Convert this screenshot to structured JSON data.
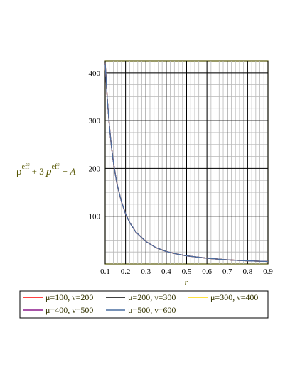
{
  "chart_data": {
    "type": "line",
    "xlabel": "r",
    "ylabel": {
      "rho": "ρ",
      "eff1": "eff",
      "mid": " + 3 ",
      "p": "p",
      "eff2": "eff",
      "tail": " − A"
    },
    "xlim": [
      0.1,
      0.9
    ],
    "ylim": [
      0,
      425
    ],
    "x_ticks": [
      0.1,
      0.2,
      0.3,
      0.4,
      0.5,
      0.6,
      0.7,
      0.8,
      0.9
    ],
    "y_ticks": [
      100,
      200,
      300,
      400
    ],
    "grid": true,
    "legend_position": "bottom",
    "series": [
      {
        "name": "μ=100, ν=200",
        "color": "#ff0000"
      },
      {
        "name": "μ=200, ν=300",
        "color": "#000000"
      },
      {
        "name": "μ=300, ν=400",
        "color": "#ffd700"
      },
      {
        "name": "μ=400, ν=500",
        "color": "#8b1a8b"
      },
      {
        "name": "μ=500, ν=600",
        "color": "#4a6fa0"
      }
    ],
    "x": [
      0.1,
      0.11,
      0.12,
      0.13,
      0.14,
      0.15,
      0.16,
      0.18,
      0.2,
      0.22,
      0.25,
      0.3,
      0.35,
      0.4,
      0.45,
      0.5,
      0.6,
      0.7,
      0.8,
      0.9
    ],
    "y": [
      420,
      347,
      292,
      248,
      214,
      187,
      164,
      130,
      105,
      87,
      67,
      47,
      34,
      26,
      21,
      17,
      12,
      8.6,
      6.6,
      5.2
    ]
  }
}
